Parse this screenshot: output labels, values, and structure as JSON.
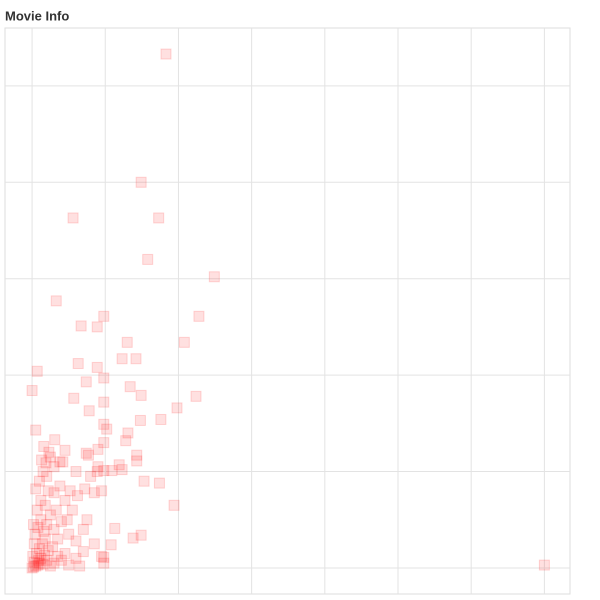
{
  "chart_data": {
    "type": "scatter",
    "title": "Movie Info",
    "color": "#ff0000",
    "grid": true,
    "xlim": [
      -0.37,
      7.35
    ],
    "ylim": [
      -0.27,
      5.6
    ],
    "xticks": [
      0,
      1,
      2,
      3,
      4,
      5,
      6,
      7
    ],
    "yticks": [
      0,
      1,
      2,
      3,
      4,
      5
    ],
    "x": [
      1.83,
      7.0,
      1.49,
      1.73,
      0.56,
      1.58,
      2.49,
      0.33,
      0.98,
      2.28,
      0.67,
      0.89,
      2.08,
      1.3,
      1.23,
      1.42,
      0.63,
      0.89,
      0.07,
      0.98,
      0.74,
      1.34,
      0,
      1.49,
      2.24,
      0.57,
      0.98,
      1.98,
      0.78,
      1.76,
      1.48,
      0.98,
      1.02,
      0.05,
      1.31,
      1.28,
      0.31,
      0.16,
      0.98,
      0.9,
      0.23,
      0.45,
      0.74,
      0.77,
      1.43,
      1.43,
      1.19,
      1.23,
      0.38,
      0.19,
      0.89,
      0.98,
      1.09,
      1.53,
      1.74,
      1.94,
      1.13,
      1.38,
      1.49,
      1.08,
      0.98,
      0.98,
      0,
      0.02,
      0.05,
      0.08,
      0.1,
      0.03,
      0.12,
      0.15,
      0.2,
      0.25,
      0.3,
      0.06,
      0.1,
      0.14,
      0.18,
      0.22,
      0.28,
      0.35,
      0.4,
      0.45,
      0.5,
      0.6,
      0.65,
      0.7,
      0.04,
      0.08,
      0.12,
      0.16,
      0.2,
      0.25,
      0.3,
      0.35,
      0.4,
      0.5,
      0.55,
      0.6,
      0.7,
      0.75,
      0.85,
      0.95,
      0.07,
      0.12,
      0.18,
      0.22,
      0.3,
      0.38,
      0.45,
      0.52,
      0.62,
      0.72,
      0.85,
      0.95,
      0.05,
      0.1,
      0.15,
      0.2,
      0.3,
      0.42,
      0.6,
      0.8,
      0.9,
      0.13,
      0.25,
      0.03,
      0.33,
      0.48,
      0.01,
      0.09,
      0.17,
      0.02
    ],
    "series": [
      {
        "values": [
          5.33,
          0.03,
          4.0,
          3.63,
          3.63,
          3.2,
          3.02,
          2.77,
          2.61,
          2.61,
          2.51,
          2.5,
          2.34,
          2.34,
          2.17,
          2.17,
          2.12,
          2.08,
          2.04,
          1.97,
          1.93,
          1.88,
          1.84,
          1.79,
          1.78,
          1.76,
          1.72,
          1.66,
          1.63,
          1.54,
          1.53,
          1.49,
          1.44,
          1.43,
          1.4,
          1.32,
          1.33,
          1.26,
          1.3,
          1.23,
          1.2,
          1.22,
          1.19,
          1.17,
          1.17,
          1.11,
          1.07,
          1.02,
          1.1,
          1.09,
          1.0,
          1.01,
          1.01,
          0.9,
          0.88,
          0.65,
          0.41,
          0.31,
          0.34,
          0.24,
          0.11,
          0.05,
          0,
          0.01,
          0.02,
          0.03,
          0.05,
          0.06,
          0.1,
          0.04,
          0.08,
          0.02,
          0.05,
          0.15,
          0.2,
          0.25,
          0.3,
          0.18,
          0.22,
          0.12,
          0.08,
          0.15,
          0.03,
          0.1,
          0.02,
          0.17,
          0.35,
          0.42,
          0.5,
          0.38,
          0.45,
          0.55,
          0.4,
          0.3,
          0.48,
          0.35,
          0.6,
          0.28,
          0.4,
          0.5,
          0.25,
          0.12,
          0.6,
          0.7,
          0.65,
          0.8,
          0.78,
          0.85,
          0.7,
          0.8,
          0.75,
          0.82,
          0.78,
          0.8,
          0.82,
          0.9,
          1.0,
          0.95,
          1.05,
          1.1,
          1.0,
          0.95,
          1.05,
          1.12,
          1.15,
          0.25,
          0.6,
          0.5,
          0.12,
          0.08,
          0.13,
          0.45
        ]
      }
    ]
  }
}
